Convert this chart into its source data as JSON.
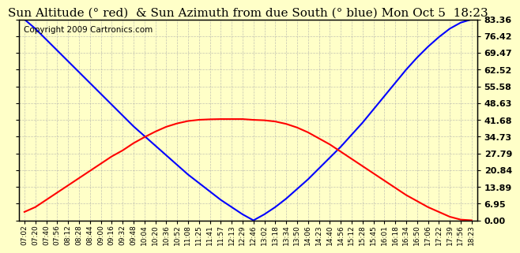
{
  "title": "Sun Altitude (° red)  & Sun Azimuth from due South (° blue) Mon Oct 5  18:23",
  "copyright": "Copyright 2009 Cartronics.com",
  "y_ticks": [
    0.0,
    6.95,
    13.89,
    20.84,
    27.79,
    34.73,
    41.68,
    48.63,
    55.58,
    62.52,
    69.47,
    76.42,
    83.36
  ],
  "y_max": 83.36,
  "x_labels": [
    "07:02",
    "07:20",
    "07:40",
    "07:56",
    "08:12",
    "08:28",
    "08:44",
    "09:00",
    "09:16",
    "09:32",
    "09:48",
    "10:04",
    "10:20",
    "10:36",
    "10:52",
    "11:08",
    "11:25",
    "11:41",
    "11:57",
    "12:13",
    "12:29",
    "12:46",
    "13:02",
    "13:18",
    "13:34",
    "13:50",
    "14:06",
    "14:23",
    "14:40",
    "14:56",
    "15:12",
    "15:28",
    "15:45",
    "16:01",
    "16:18",
    "16:34",
    "16:50",
    "17:06",
    "17:22",
    "17:39",
    "17:56",
    "18:23"
  ],
  "altitude_values": [
    3.5,
    5.5,
    8.5,
    11.5,
    14.5,
    17.5,
    20.5,
    23.5,
    26.5,
    29.0,
    32.0,
    34.5,
    36.8,
    38.8,
    40.2,
    41.2,
    41.7,
    41.9,
    42.0,
    42.0,
    42.0,
    41.68,
    41.5,
    41.0,
    40.0,
    38.5,
    36.5,
    34.0,
    31.5,
    28.5,
    25.5,
    22.5,
    19.5,
    16.5,
    13.5,
    10.5,
    8.0,
    5.5,
    3.5,
    1.5,
    0.3,
    0.0
  ],
  "azimuth_values": [
    83.36,
    79.5,
    75.0,
    70.5,
    66.0,
    61.5,
    57.0,
    52.5,
    48.0,
    43.5,
    39.0,
    35.0,
    31.0,
    27.0,
    23.0,
    19.0,
    15.5,
    12.0,
    8.5,
    5.5,
    2.5,
    0.0,
    2.5,
    5.5,
    9.0,
    13.0,
    17.0,
    21.5,
    26.0,
    30.5,
    35.5,
    40.5,
    46.0,
    51.5,
    57.0,
    62.5,
    67.5,
    72.0,
    76.0,
    79.5,
    82.0,
    83.36
  ],
  "bg_color": "#FFFFC8",
  "plot_bg_color": "#FFFFC8",
  "grid_color": "#AAAAAA",
  "altitude_color": "red",
  "azimuth_color": "blue",
  "title_fontsize": 11,
  "copyright_fontsize": 7.5,
  "tick_fontsize": 6.5,
  "ytick_fontsize": 8
}
